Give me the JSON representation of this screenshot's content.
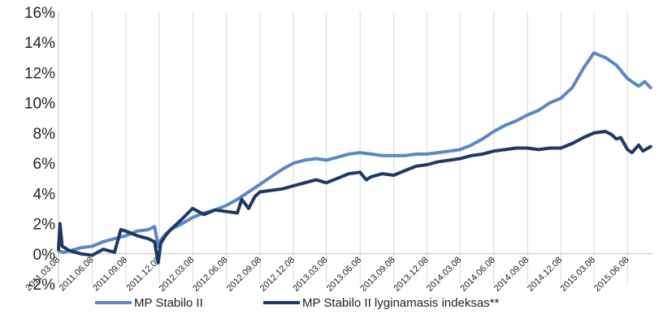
{
  "chart_data": {
    "type": "line",
    "title": "",
    "xlabel": "",
    "ylabel": "",
    "ylim": [
      -2,
      16
    ],
    "yticks": [
      "-2%",
      "0%",
      "2%",
      "4%",
      "6%",
      "8%",
      "10%",
      "12%",
      "14%",
      "16%"
    ],
    "xlim": [
      "2011-03-08",
      "2015-08-15"
    ],
    "xticks": [
      "2011.03.08",
      "2011.06.08",
      "2011.09.08",
      "2011.12.08",
      "2012.03.08",
      "2012.06.08",
      "2012.09.08",
      "2012.12.08",
      "2013.03.08",
      "2013.06.08",
      "2013.09.08",
      "2013.12.08",
      "2014.03.08",
      "2014.06.08",
      "2014.09.08",
      "2014.12.08",
      "2015.03.08",
      "2015.06.08"
    ],
    "grid": "vertical",
    "legend_position": "bottom",
    "series": [
      {
        "name": "MP Stabilo II",
        "color": "#5b87c5",
        "points": [
          [
            "2011-03-08",
            0.2
          ],
          [
            "2011-03-20",
            0.1
          ],
          [
            "2011-04-08",
            0.2
          ],
          [
            "2011-05-08",
            0.4
          ],
          [
            "2011-06-08",
            0.5
          ],
          [
            "2011-07-08",
            0.8
          ],
          [
            "2011-08-08",
            1.0
          ],
          [
            "2011-09-08",
            1.2
          ],
          [
            "2011-10-08",
            1.5
          ],
          [
            "2011-11-08",
            1.6
          ],
          [
            "2011-11-25",
            1.8
          ],
          [
            "2011-12-05",
            0.5
          ],
          [
            "2011-12-12",
            0.9
          ],
          [
            "2011-12-25",
            1.3
          ],
          [
            "2012-01-08",
            1.6
          ],
          [
            "2012-02-08",
            2.0
          ],
          [
            "2012-03-08",
            2.4
          ],
          [
            "2012-04-08",
            2.7
          ],
          [
            "2012-05-08",
            2.9
          ],
          [
            "2012-06-08",
            3.2
          ],
          [
            "2012-07-08",
            3.6
          ],
          [
            "2012-08-08",
            4.1
          ],
          [
            "2012-09-08",
            4.6
          ],
          [
            "2012-10-08",
            5.1
          ],
          [
            "2012-11-08",
            5.6
          ],
          [
            "2012-12-08",
            6.0
          ],
          [
            "2013-01-08",
            6.2
          ],
          [
            "2013-02-08",
            6.3
          ],
          [
            "2013-03-08",
            6.2
          ],
          [
            "2013-04-08",
            6.4
          ],
          [
            "2013-05-08",
            6.6
          ],
          [
            "2013-06-08",
            6.7
          ],
          [
            "2013-07-08",
            6.6
          ],
          [
            "2013-08-08",
            6.5
          ],
          [
            "2013-09-08",
            6.5
          ],
          [
            "2013-10-08",
            6.5
          ],
          [
            "2013-11-08",
            6.6
          ],
          [
            "2013-12-08",
            6.6
          ],
          [
            "2014-01-08",
            6.7
          ],
          [
            "2014-02-08",
            6.8
          ],
          [
            "2014-03-08",
            6.9
          ],
          [
            "2014-04-08",
            7.2
          ],
          [
            "2014-05-08",
            7.6
          ],
          [
            "2014-06-08",
            8.1
          ],
          [
            "2014-07-08",
            8.5
          ],
          [
            "2014-08-08",
            8.8
          ],
          [
            "2014-09-08",
            9.2
          ],
          [
            "2014-10-08",
            9.5
          ],
          [
            "2014-11-08",
            10.0
          ],
          [
            "2014-12-08",
            10.3
          ],
          [
            "2015-01-08",
            11.0
          ],
          [
            "2015-02-08",
            12.3
          ],
          [
            "2015-03-08",
            13.3
          ],
          [
            "2015-04-08",
            13.0
          ],
          [
            "2015-05-08",
            12.5
          ],
          [
            "2015-06-08",
            11.6
          ],
          [
            "2015-07-08",
            11.1
          ],
          [
            "2015-07-25",
            11.4
          ],
          [
            "2015-08-10",
            11.0
          ]
        ]
      },
      {
        "name": "MP Stabilo II lyginamasis indeksas**",
        "color": "#1f3864",
        "points": [
          [
            "2011-03-08",
            0.3
          ],
          [
            "2011-03-12",
            2.0
          ],
          [
            "2011-03-18",
            0.5
          ],
          [
            "2011-04-08",
            0.2
          ],
          [
            "2011-05-08",
            0.0
          ],
          [
            "2011-06-08",
            -0.1
          ],
          [
            "2011-07-08",
            0.3
          ],
          [
            "2011-08-08",
            0.1
          ],
          [
            "2011-08-25",
            1.6
          ],
          [
            "2011-09-08",
            1.5
          ],
          [
            "2011-10-08",
            1.2
          ],
          [
            "2011-11-08",
            1.0
          ],
          [
            "2011-11-25",
            0.8
          ],
          [
            "2011-12-05",
            -0.6
          ],
          [
            "2011-12-12",
            0.7
          ],
          [
            "2011-12-25",
            1.2
          ],
          [
            "2012-01-08",
            1.6
          ],
          [
            "2012-02-08",
            2.3
          ],
          [
            "2012-03-08",
            3.0
          ],
          [
            "2012-04-08",
            2.6
          ],
          [
            "2012-05-08",
            2.9
          ],
          [
            "2012-06-08",
            2.8
          ],
          [
            "2012-07-08",
            2.7
          ],
          [
            "2012-07-20",
            3.6
          ],
          [
            "2012-08-08",
            3.0
          ],
          [
            "2012-08-25",
            3.8
          ],
          [
            "2012-09-08",
            4.1
          ],
          [
            "2012-10-08",
            4.2
          ],
          [
            "2012-11-08",
            4.3
          ],
          [
            "2012-12-08",
            4.5
          ],
          [
            "2013-01-08",
            4.7
          ],
          [
            "2013-02-08",
            4.9
          ],
          [
            "2013-03-08",
            4.7
          ],
          [
            "2013-04-08",
            5.0
          ],
          [
            "2013-05-08",
            5.3
          ],
          [
            "2013-06-08",
            5.4
          ],
          [
            "2013-06-25",
            4.9
          ],
          [
            "2013-07-08",
            5.1
          ],
          [
            "2013-08-08",
            5.3
          ],
          [
            "2013-09-08",
            5.2
          ],
          [
            "2013-10-08",
            5.5
          ],
          [
            "2013-11-08",
            5.8
          ],
          [
            "2013-12-08",
            5.9
          ],
          [
            "2014-01-08",
            6.1
          ],
          [
            "2014-02-08",
            6.2
          ],
          [
            "2014-03-08",
            6.3
          ],
          [
            "2014-04-08",
            6.5
          ],
          [
            "2014-05-08",
            6.6
          ],
          [
            "2014-06-08",
            6.8
          ],
          [
            "2014-07-08",
            6.9
          ],
          [
            "2014-08-08",
            7.0
          ],
          [
            "2014-09-08",
            7.0
          ],
          [
            "2014-10-08",
            6.9
          ],
          [
            "2014-11-08",
            7.0
          ],
          [
            "2014-12-08",
            7.0
          ],
          [
            "2015-01-08",
            7.3
          ],
          [
            "2015-02-08",
            7.7
          ],
          [
            "2015-03-08",
            8.0
          ],
          [
            "2015-04-08",
            8.1
          ],
          [
            "2015-04-25",
            7.9
          ],
          [
            "2015-05-08",
            7.6
          ],
          [
            "2015-05-20",
            7.7
          ],
          [
            "2015-06-08",
            6.9
          ],
          [
            "2015-06-20",
            6.7
          ],
          [
            "2015-07-08",
            7.2
          ],
          [
            "2015-07-20",
            6.8
          ],
          [
            "2015-08-10",
            7.1
          ]
        ]
      }
    ]
  }
}
